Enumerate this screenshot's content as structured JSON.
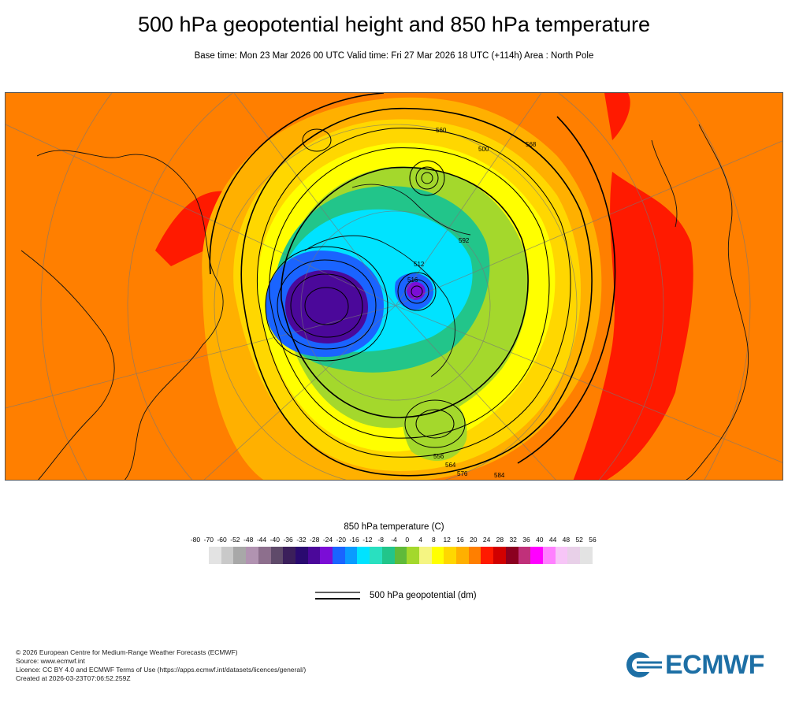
{
  "header": {
    "title": "500 hPa geopotential height and 850 hPa temperature",
    "subtitle": "Base time: Mon 23 Mar 2026 00 UTC Valid time: Fri 27 Mar 2026 18 UTC (+114h) Area : North Pole"
  },
  "map": {
    "contour_labels": [
      "560",
      "500",
      "568",
      "512",
      "516",
      "592",
      "576",
      "584",
      "564",
      "556"
    ]
  },
  "legend": {
    "title": "850 hPa temperature (C)",
    "ticks": [
      "-80",
      "-70",
      "-60",
      "-52",
      "-48",
      "-44",
      "-40",
      "-36",
      "-32",
      "-28",
      "-24",
      "-20",
      "-16",
      "-12",
      "-8",
      "-4",
      "0",
      "4",
      "8",
      "12",
      "16",
      "20",
      "24",
      "28",
      "32",
      "36",
      "40",
      "44",
      "48",
      "52",
      "56"
    ],
    "colors": [
      "#e3e3e3",
      "#c9c9c9",
      "#a8a8a8",
      "#b193b1",
      "#8d6f8d",
      "#5f4a6a",
      "#3b1f5b",
      "#2a0a70",
      "#4b089a",
      "#7b0dd6",
      "#1a64ff",
      "#0a9bff",
      "#00e3ff",
      "#29e0c0",
      "#22c58a",
      "#5fba3a",
      "#a4d82c",
      "#f5f582",
      "#ffff00",
      "#ffd700",
      "#ffb000",
      "#ff7f00",
      "#ff1a00",
      "#d10000",
      "#8b0020",
      "#c0307a",
      "#ff00ff",
      "#ff80ff",
      "#f7c5f7",
      "#e8d0e8",
      "#e3e3e3"
    ],
    "geopotential_label": "500 hPa geopotential (dm)"
  },
  "footer": {
    "lines": [
      "© 2026 European Centre for Medium-Range Weather Forecasts (ECMWF)",
      "Source: www.ecmwf.int",
      "Licence: CC BY 4.0 and ECMWF Terms of Use (https://apps.ecmwf.int/datasets/licences/general/)",
      "Created at 2026-03-23T07:06:52.259Z"
    ],
    "logo_text": "ECMWF"
  },
  "colors": {
    "logo_blue": "#1d6fa5"
  }
}
